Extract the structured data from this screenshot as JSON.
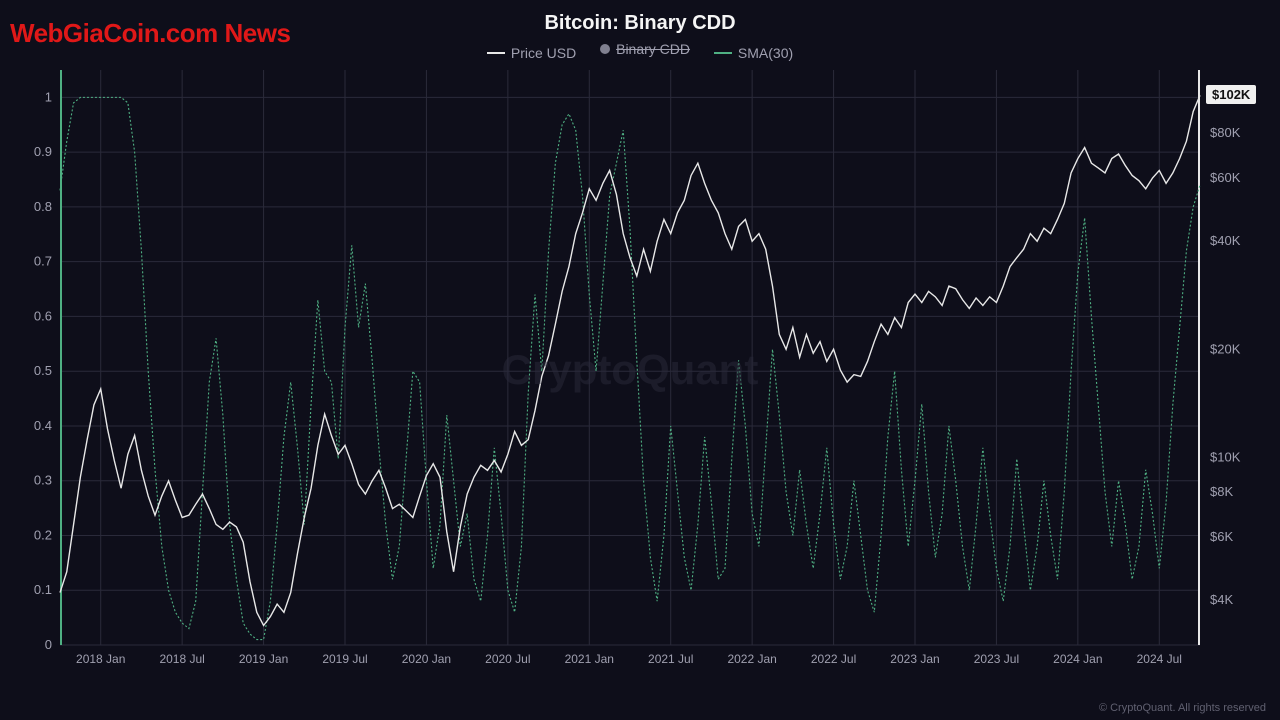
{
  "brand_overlay": {
    "text": "WebGiaCoin.com News",
    "color": "#e01818"
  },
  "chart": {
    "title": "Bitcoin: Binary CDD",
    "watermark": "CryptoQuant",
    "legend": [
      {
        "label": "Price USD",
        "type": "line",
        "color": "#e8e8e8",
        "disabled": false
      },
      {
        "label": "Binary CDD",
        "type": "dot",
        "color": "#808090",
        "disabled": true
      },
      {
        "label": "SMA(30)",
        "type": "line",
        "color": "#4fb083",
        "disabled": false
      }
    ],
    "colors": {
      "background": "#0e0e1a",
      "grid": "#2a2a3a",
      "left_axis": "#4fb083",
      "right_axis": "#e8e8e8",
      "price_line": "#e8e8e8",
      "sma_line": "#4fb083",
      "axis_text": "#a0a0b0",
      "badge_bg": "#f0f0f0",
      "badge_text": "#111111",
      "watermark": "#2a2a3a"
    },
    "left_axis": {
      "min": 0,
      "max": 1.05,
      "ticks": [
        0,
        0.1,
        0.2,
        0.3,
        0.4,
        0.5,
        0.6,
        0.7,
        0.8,
        0.9,
        1
      ],
      "tick_labels": [
        "0",
        "0.1",
        "0.2",
        "0.3",
        "0.4",
        "0.5",
        "0.6",
        "0.7",
        "0.8",
        "0.9",
        "1"
      ]
    },
    "right_axis": {
      "type": "log",
      "min": 3000,
      "max": 120000,
      "ticks": [
        4000,
        6000,
        8000,
        10000,
        20000,
        40000,
        60000,
        80000,
        102000
      ],
      "tick_labels": [
        "$4K",
        "$6K",
        "$8K",
        "$10K",
        "$20K",
        "$40K",
        "$60K",
        "$80K",
        "$102K"
      ]
    },
    "price_badge": "$102K",
    "x_axis": {
      "min": 0,
      "max": 168,
      "ticks": [
        6,
        12,
        18,
        24,
        30,
        36,
        42,
        48,
        54,
        60,
        66,
        72,
        78,
        84,
        90
      ],
      "tick_x": [
        6,
        18,
        30,
        42,
        54,
        66,
        78,
        90,
        102,
        114,
        126,
        138,
        150,
        162
      ],
      "tick_labels": [
        "2018 Jan",
        "2018 Jul",
        "2019 Jan",
        "2019 Jul",
        "2020 Jan",
        "2020 Jul",
        "2021 Jan",
        "2021 Jul",
        "2022 Jan",
        "2022 Jul",
        "2023 Jan",
        "2023 Jul",
        "2024 Jan",
        "2024 Jul"
      ]
    },
    "price_series": [
      [
        0,
        4200
      ],
      [
        1,
        4800
      ],
      [
        2,
        6500
      ],
      [
        3,
        8800
      ],
      [
        4,
        11200
      ],
      [
        5,
        14000
      ],
      [
        6,
        15500
      ],
      [
        7,
        12000
      ],
      [
        8,
        9800
      ],
      [
        9,
        8200
      ],
      [
        10,
        10200
      ],
      [
        11,
        11500
      ],
      [
        12,
        9200
      ],
      [
        13,
        7800
      ],
      [
        14,
        6900
      ],
      [
        15,
        7800
      ],
      [
        16,
        8600
      ],
      [
        17,
        7600
      ],
      [
        18,
        6800
      ],
      [
        19,
        6900
      ],
      [
        20,
        7400
      ],
      [
        21,
        7900
      ],
      [
        22,
        7200
      ],
      [
        23,
        6500
      ],
      [
        24,
        6300
      ],
      [
        25,
        6600
      ],
      [
        26,
        6400
      ],
      [
        27,
        5800
      ],
      [
        28,
        4500
      ],
      [
        29,
        3700
      ],
      [
        30,
        3400
      ],
      [
        31,
        3600
      ],
      [
        32,
        3900
      ],
      [
        33,
        3700
      ],
      [
        34,
        4200
      ],
      [
        35,
        5400
      ],
      [
        36,
        6800
      ],
      [
        37,
        8200
      ],
      [
        38,
        10800
      ],
      [
        39,
        13200
      ],
      [
        40,
        11500
      ],
      [
        41,
        10200
      ],
      [
        42,
        10800
      ],
      [
        43,
        9600
      ],
      [
        44,
        8400
      ],
      [
        45,
        7900
      ],
      [
        46,
        8600
      ],
      [
        47,
        9200
      ],
      [
        48,
        8200
      ],
      [
        49,
        7200
      ],
      [
        50,
        7400
      ],
      [
        51,
        7100
      ],
      [
        52,
        6800
      ],
      [
        53,
        7800
      ],
      [
        54,
        8900
      ],
      [
        55,
        9600
      ],
      [
        56,
        8800
      ],
      [
        57,
        6200
      ],
      [
        58,
        4800
      ],
      [
        59,
        6400
      ],
      [
        60,
        7900
      ],
      [
        61,
        8800
      ],
      [
        62,
        9500
      ],
      [
        63,
        9200
      ],
      [
        64,
        9800
      ],
      [
        65,
        9100
      ],
      [
        66,
        10200
      ],
      [
        67,
        11800
      ],
      [
        68,
        10800
      ],
      [
        69,
        11200
      ],
      [
        70,
        13500
      ],
      [
        71,
        16800
      ],
      [
        72,
        19200
      ],
      [
        73,
        23500
      ],
      [
        74,
        29000
      ],
      [
        75,
        34000
      ],
      [
        76,
        42000
      ],
      [
        77,
        48000
      ],
      [
        78,
        56000
      ],
      [
        79,
        52000
      ],
      [
        80,
        58000
      ],
      [
        81,
        63000
      ],
      [
        82,
        54000
      ],
      [
        83,
        42000
      ],
      [
        84,
        36000
      ],
      [
        85,
        32000
      ],
      [
        86,
        38000
      ],
      [
        87,
        33000
      ],
      [
        88,
        40000
      ],
      [
        89,
        46000
      ],
      [
        90,
        42000
      ],
      [
        91,
        48000
      ],
      [
        92,
        52000
      ],
      [
        93,
        61000
      ],
      [
        94,
        66000
      ],
      [
        95,
        58000
      ],
      [
        96,
        52000
      ],
      [
        97,
        48000
      ],
      [
        98,
        42000
      ],
      [
        99,
        38000
      ],
      [
        100,
        44000
      ],
      [
        101,
        46000
      ],
      [
        102,
        40000
      ],
      [
        103,
        42000
      ],
      [
        104,
        38000
      ],
      [
        105,
        30000
      ],
      [
        106,
        22000
      ],
      [
        107,
        20000
      ],
      [
        108,
        23000
      ],
      [
        109,
        19000
      ],
      [
        110,
        22000
      ],
      [
        111,
        19500
      ],
      [
        112,
        21000
      ],
      [
        113,
        18500
      ],
      [
        114,
        20000
      ],
      [
        115,
        17500
      ],
      [
        116,
        16200
      ],
      [
        117,
        17000
      ],
      [
        118,
        16800
      ],
      [
        119,
        18500
      ],
      [
        120,
        21000
      ],
      [
        121,
        23500
      ],
      [
        122,
        22000
      ],
      [
        123,
        24500
      ],
      [
        124,
        23000
      ],
      [
        125,
        27000
      ],
      [
        126,
        28500
      ],
      [
        127,
        27000
      ],
      [
        128,
        29000
      ],
      [
        129,
        28000
      ],
      [
        130,
        26500
      ],
      [
        131,
        30000
      ],
      [
        132,
        29500
      ],
      [
        133,
        27500
      ],
      [
        134,
        26000
      ],
      [
        135,
        27800
      ],
      [
        136,
        26500
      ],
      [
        137,
        28000
      ],
      [
        138,
        27000
      ],
      [
        139,
        30000
      ],
      [
        140,
        34000
      ],
      [
        141,
        36000
      ],
      [
        142,
        38000
      ],
      [
        143,
        42000
      ],
      [
        144,
        40000
      ],
      [
        145,
        43500
      ],
      [
        146,
        42000
      ],
      [
        147,
        46000
      ],
      [
        148,
        51000
      ],
      [
        149,
        62000
      ],
      [
        150,
        68000
      ],
      [
        151,
        73000
      ],
      [
        152,
        66000
      ],
      [
        153,
        64000
      ],
      [
        154,
        62000
      ],
      [
        155,
        68000
      ],
      [
        156,
        70000
      ],
      [
        157,
        65000
      ],
      [
        158,
        61000
      ],
      [
        159,
        59000
      ],
      [
        160,
        56000
      ],
      [
        161,
        60000
      ],
      [
        162,
        63000
      ],
      [
        163,
        58000
      ],
      [
        164,
        62000
      ],
      [
        165,
        68000
      ],
      [
        166,
        76000
      ],
      [
        167,
        92000
      ],
      [
        168,
        102000
      ]
    ],
    "sma_series": [
      [
        0,
        0.83
      ],
      [
        1,
        0.92
      ],
      [
        2,
        0.99
      ],
      [
        3,
        1.0
      ],
      [
        4,
        1.0
      ],
      [
        5,
        1.0
      ],
      [
        6,
        1.0
      ],
      [
        7,
        1.0
      ],
      [
        8,
        1.0
      ],
      [
        9,
        1.0
      ],
      [
        10,
        0.99
      ],
      [
        11,
        0.9
      ],
      [
        12,
        0.72
      ],
      [
        13,
        0.5
      ],
      [
        14,
        0.32
      ],
      [
        15,
        0.18
      ],
      [
        16,
        0.1
      ],
      [
        17,
        0.06
      ],
      [
        18,
        0.04
      ],
      [
        19,
        0.03
      ],
      [
        20,
        0.08
      ],
      [
        21,
        0.28
      ],
      [
        22,
        0.48
      ],
      [
        23,
        0.56
      ],
      [
        24,
        0.42
      ],
      [
        25,
        0.22
      ],
      [
        26,
        0.12
      ],
      [
        27,
        0.04
      ],
      [
        28,
        0.02
      ],
      [
        29,
        0.01
      ],
      [
        30,
        0.01
      ],
      [
        31,
        0.08
      ],
      [
        32,
        0.22
      ],
      [
        33,
        0.38
      ],
      [
        34,
        0.48
      ],
      [
        35,
        0.36
      ],
      [
        36,
        0.22
      ],
      [
        37,
        0.44
      ],
      [
        38,
        0.63
      ],
      [
        39,
        0.5
      ],
      [
        40,
        0.48
      ],
      [
        41,
        0.34
      ],
      [
        42,
        0.58
      ],
      [
        43,
        0.73
      ],
      [
        44,
        0.58
      ],
      [
        45,
        0.66
      ],
      [
        46,
        0.52
      ],
      [
        47,
        0.36
      ],
      [
        48,
        0.22
      ],
      [
        49,
        0.12
      ],
      [
        50,
        0.18
      ],
      [
        51,
        0.34
      ],
      [
        52,
        0.5
      ],
      [
        53,
        0.48
      ],
      [
        54,
        0.3
      ],
      [
        55,
        0.14
      ],
      [
        56,
        0.22
      ],
      [
        57,
        0.42
      ],
      [
        58,
        0.3
      ],
      [
        59,
        0.18
      ],
      [
        60,
        0.24
      ],
      [
        61,
        0.12
      ],
      [
        62,
        0.08
      ],
      [
        63,
        0.2
      ],
      [
        64,
        0.36
      ],
      [
        65,
        0.24
      ],
      [
        66,
        0.1
      ],
      [
        67,
        0.06
      ],
      [
        68,
        0.18
      ],
      [
        69,
        0.46
      ],
      [
        70,
        0.64
      ],
      [
        71,
        0.5
      ],
      [
        72,
        0.72
      ],
      [
        73,
        0.88
      ],
      [
        74,
        0.95
      ],
      [
        75,
        0.97
      ],
      [
        76,
        0.94
      ],
      [
        77,
        0.82
      ],
      [
        78,
        0.64
      ],
      [
        79,
        0.5
      ],
      [
        80,
        0.66
      ],
      [
        81,
        0.82
      ],
      [
        82,
        0.88
      ],
      [
        83,
        0.94
      ],
      [
        84,
        0.76
      ],
      [
        85,
        0.52
      ],
      [
        86,
        0.3
      ],
      [
        87,
        0.16
      ],
      [
        88,
        0.08
      ],
      [
        89,
        0.2
      ],
      [
        90,
        0.4
      ],
      [
        91,
        0.28
      ],
      [
        92,
        0.16
      ],
      [
        93,
        0.1
      ],
      [
        94,
        0.22
      ],
      [
        95,
        0.38
      ],
      [
        96,
        0.26
      ],
      [
        97,
        0.12
      ],
      [
        98,
        0.14
      ],
      [
        99,
        0.34
      ],
      [
        100,
        0.52
      ],
      [
        101,
        0.4
      ],
      [
        102,
        0.24
      ],
      [
        103,
        0.18
      ],
      [
        104,
        0.36
      ],
      [
        105,
        0.54
      ],
      [
        106,
        0.42
      ],
      [
        107,
        0.28
      ],
      [
        108,
        0.2
      ],
      [
        109,
        0.32
      ],
      [
        110,
        0.22
      ],
      [
        111,
        0.14
      ],
      [
        112,
        0.24
      ],
      [
        113,
        0.36
      ],
      [
        114,
        0.22
      ],
      [
        115,
        0.12
      ],
      [
        116,
        0.18
      ],
      [
        117,
        0.3
      ],
      [
        118,
        0.2
      ],
      [
        119,
        0.1
      ],
      [
        120,
        0.06
      ],
      [
        121,
        0.2
      ],
      [
        122,
        0.38
      ],
      [
        123,
        0.5
      ],
      [
        124,
        0.32
      ],
      [
        125,
        0.18
      ],
      [
        126,
        0.3
      ],
      [
        127,
        0.44
      ],
      [
        128,
        0.28
      ],
      [
        129,
        0.16
      ],
      [
        130,
        0.24
      ],
      [
        131,
        0.4
      ],
      [
        132,
        0.3
      ],
      [
        133,
        0.18
      ],
      [
        134,
        0.1
      ],
      [
        135,
        0.22
      ],
      [
        136,
        0.36
      ],
      [
        137,
        0.24
      ],
      [
        138,
        0.14
      ],
      [
        139,
        0.08
      ],
      [
        140,
        0.18
      ],
      [
        141,
        0.34
      ],
      [
        142,
        0.22
      ],
      [
        143,
        0.1
      ],
      [
        144,
        0.18
      ],
      [
        145,
        0.3
      ],
      [
        146,
        0.2
      ],
      [
        147,
        0.12
      ],
      [
        148,
        0.28
      ],
      [
        149,
        0.5
      ],
      [
        150,
        0.68
      ],
      [
        151,
        0.78
      ],
      [
        152,
        0.6
      ],
      [
        153,
        0.44
      ],
      [
        154,
        0.28
      ],
      [
        155,
        0.18
      ],
      [
        156,
        0.3
      ],
      [
        157,
        0.22
      ],
      [
        158,
        0.12
      ],
      [
        159,
        0.18
      ],
      [
        160,
        0.32
      ],
      [
        161,
        0.24
      ],
      [
        162,
        0.14
      ],
      [
        163,
        0.26
      ],
      [
        164,
        0.44
      ],
      [
        165,
        0.58
      ],
      [
        166,
        0.72
      ],
      [
        167,
        0.8
      ],
      [
        168,
        0.84
      ]
    ],
    "line_width_price": 1.4,
    "line_width_sma": 1.1
  },
  "copyright": "© CryptoQuant. All rights reserved"
}
